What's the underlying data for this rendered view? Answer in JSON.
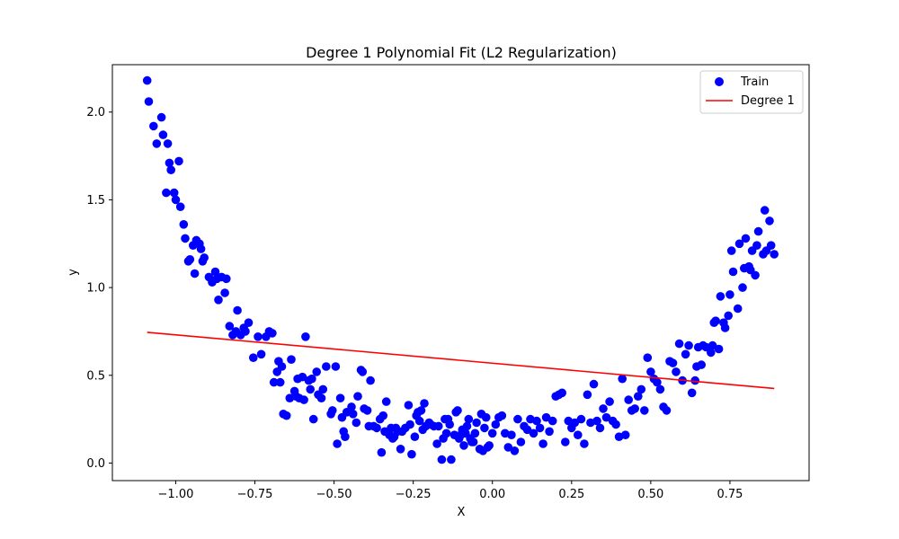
{
  "chart_data": {
    "type": "scatter",
    "title": "Degree 1 Polynomial Fit (L2 Regularization)",
    "xlabel": "X",
    "ylabel": "y",
    "xlim": [
      -1.2,
      1.0
    ],
    "ylim": [
      -0.1,
      2.27
    ],
    "x_ticks": [
      -1.0,
      -0.75,
      -0.5,
      -0.25,
      0.0,
      0.25,
      0.5,
      0.75
    ],
    "x_tick_labels": [
      "−1.00",
      "−0.75",
      "−0.50",
      "−0.25",
      "0.00",
      "0.25",
      "0.50",
      "0.75"
    ],
    "y_ticks": [
      0.0,
      0.5,
      1.0,
      1.5,
      2.0
    ],
    "y_tick_labels": [
      "0.0",
      "0.5",
      "1.0",
      "1.5",
      "2.0"
    ],
    "grid": false,
    "legend_position": "top-right",
    "series": [
      {
        "name": "Train",
        "kind": "scatter",
        "color": "#0000ff",
        "points": [
          [
            -1.09,
            2.18
          ],
          [
            -1.085,
            2.06
          ],
          [
            -1.07,
            1.92
          ],
          [
            -1.06,
            1.82
          ],
          [
            -1.045,
            1.97
          ],
          [
            -1.04,
            1.87
          ],
          [
            -1.025,
            1.82
          ],
          [
            -1.03,
            1.54
          ],
          [
            -1.02,
            1.71
          ],
          [
            -1.015,
            1.67
          ],
          [
            -1.005,
            1.54
          ],
          [
            -1.0,
            1.5
          ],
          [
            -0.99,
            1.72
          ],
          [
            -0.985,
            1.46
          ],
          [
            -0.975,
            1.36
          ],
          [
            -0.97,
            1.28
          ],
          [
            -0.96,
            1.15
          ],
          [
            -0.955,
            1.16
          ],
          [
            -0.945,
            1.24
          ],
          [
            -0.94,
            1.08
          ],
          [
            -0.935,
            1.27
          ],
          [
            -0.925,
            1.25
          ],
          [
            -0.92,
            1.22
          ],
          [
            -0.915,
            1.15
          ],
          [
            -0.91,
            1.17
          ],
          [
            -0.895,
            1.06
          ],
          [
            -0.885,
            1.03
          ],
          [
            -0.875,
            1.09
          ],
          [
            -0.87,
            1.05
          ],
          [
            -0.865,
            0.93
          ],
          [
            -0.855,
            1.06
          ],
          [
            -0.84,
            1.05
          ],
          [
            -0.845,
            0.97
          ],
          [
            -0.83,
            0.78
          ],
          [
            -0.82,
            0.73
          ],
          [
            -0.81,
            0.75
          ],
          [
            -0.805,
            0.87
          ],
          [
            -0.795,
            0.73
          ],
          [
            -0.785,
            0.77
          ],
          [
            -0.78,
            0.75
          ],
          [
            -0.77,
            0.8
          ],
          [
            -0.755,
            0.6
          ],
          [
            -0.74,
            0.72
          ],
          [
            -0.73,
            0.62
          ],
          [
            -0.715,
            0.72
          ],
          [
            -0.705,
            0.75
          ],
          [
            -0.695,
            0.74
          ],
          [
            -0.69,
            0.46
          ],
          [
            -0.68,
            0.52
          ],
          [
            -0.675,
            0.58
          ],
          [
            -0.665,
            0.55
          ],
          [
            -0.67,
            0.46
          ],
          [
            -0.66,
            0.28
          ],
          [
            -0.65,
            0.27
          ],
          [
            -0.64,
            0.37
          ],
          [
            -0.635,
            0.59
          ],
          [
            -0.625,
            0.41
          ],
          [
            -0.62,
            0.38
          ],
          [
            -0.615,
            0.48
          ],
          [
            -0.61,
            0.37
          ],
          [
            -0.6,
            0.49
          ],
          [
            -0.595,
            0.36
          ],
          [
            -0.59,
            0.72
          ],
          [
            -0.58,
            0.47
          ],
          [
            -0.575,
            0.42
          ],
          [
            -0.57,
            0.48
          ],
          [
            -0.565,
            0.25
          ],
          [
            -0.555,
            0.52
          ],
          [
            -0.55,
            0.39
          ],
          [
            -0.54,
            0.37
          ],
          [
            -0.535,
            0.42
          ],
          [
            -0.525,
            0.55
          ],
          [
            -0.51,
            0.28
          ],
          [
            -0.505,
            0.3
          ],
          [
            -0.495,
            0.55
          ],
          [
            -0.49,
            0.11
          ],
          [
            -0.48,
            0.37
          ],
          [
            -0.475,
            0.26
          ],
          [
            -0.47,
            0.18
          ],
          [
            -0.465,
            0.15
          ],
          [
            -0.46,
            0.29
          ],
          [
            -0.445,
            0.32
          ],
          [
            -0.44,
            0.28
          ],
          [
            -0.43,
            0.23
          ],
          [
            -0.425,
            0.38
          ],
          [
            -0.415,
            0.53
          ],
          [
            -0.41,
            0.52
          ],
          [
            -0.405,
            0.31
          ],
          [
            -0.395,
            0.3
          ],
          [
            -0.39,
            0.21
          ],
          [
            -0.385,
            0.47
          ],
          [
            -0.375,
            0.21
          ],
          [
            -0.365,
            0.2
          ],
          [
            -0.355,
            0.25
          ],
          [
            -0.35,
            0.06
          ],
          [
            -0.345,
            0.27
          ],
          [
            -0.34,
            0.18
          ],
          [
            -0.335,
            0.35
          ],
          [
            -0.325,
            0.16
          ],
          [
            -0.32,
            0.2
          ],
          [
            -0.315,
            0.14
          ],
          [
            -0.31,
            0.15
          ],
          [
            -0.305,
            0.2
          ],
          [
            -0.3,
            0.18
          ],
          [
            -0.29,
            0.08
          ],
          [
            -0.285,
            0.18
          ],
          [
            -0.275,
            0.2
          ],
          [
            -0.265,
            0.33
          ],
          [
            -0.26,
            0.22
          ],
          [
            -0.255,
            0.05
          ],
          [
            -0.245,
            0.15
          ],
          [
            -0.24,
            0.27
          ],
          [
            -0.235,
            0.29
          ],
          [
            -0.23,
            0.24
          ],
          [
            -0.225,
            0.3
          ],
          [
            -0.22,
            0.19
          ],
          [
            -0.215,
            0.34
          ],
          [
            -0.21,
            0.21
          ],
          [
            -0.2,
            0.23
          ],
          [
            -0.195,
            0.22
          ],
          [
            -0.185,
            0.21
          ],
          [
            -0.175,
            0.11
          ],
          [
            -0.17,
            0.21
          ],
          [
            -0.16,
            0.02
          ],
          [
            -0.155,
            0.14
          ],
          [
            -0.15,
            0.25
          ],
          [
            -0.145,
            0.17
          ],
          [
            -0.14,
            0.25
          ],
          [
            -0.135,
            0.22
          ],
          [
            -0.13,
            0.02
          ],
          [
            -0.12,
            0.16
          ],
          [
            -0.115,
            0.29
          ],
          [
            -0.11,
            0.3
          ],
          [
            -0.105,
            0.14
          ],
          [
            -0.1,
            0.16
          ],
          [
            -0.095,
            0.19
          ],
          [
            -0.09,
            0.1
          ],
          [
            -0.085,
            0.17
          ],
          [
            -0.08,
            0.21
          ],
          [
            -0.075,
            0.25
          ],
          [
            -0.07,
            0.14
          ],
          [
            -0.065,
            0.12
          ],
          [
            -0.06,
            0.12
          ],
          [
            -0.055,
            0.17
          ],
          [
            -0.05,
            0.23
          ],
          [
            -0.04,
            0.08
          ],
          [
            -0.035,
            0.28
          ],
          [
            -0.03,
            0.07
          ],
          [
            -0.025,
            0.2
          ],
          [
            -0.02,
            0.26
          ],
          [
            -0.015,
            0.09
          ],
          [
            -0.01,
            0.1
          ],
          [
            0.0,
            0.17
          ],
          [
            0.01,
            0.22
          ],
          [
            0.02,
            0.26
          ],
          [
            0.03,
            0.27
          ],
          [
            0.04,
            0.17
          ],
          [
            0.05,
            0.09
          ],
          [
            0.06,
            0.16
          ],
          [
            0.07,
            0.07
          ],
          [
            0.08,
            0.25
          ],
          [
            0.09,
            0.12
          ],
          [
            0.1,
            0.21
          ],
          [
            0.11,
            0.19
          ],
          [
            0.12,
            0.25
          ],
          [
            0.13,
            0.17
          ],
          [
            0.14,
            0.24
          ],
          [
            0.15,
            0.2
          ],
          [
            0.16,
            0.11
          ],
          [
            0.17,
            0.26
          ],
          [
            0.18,
            0.18
          ],
          [
            0.19,
            0.24
          ],
          [
            0.2,
            0.38
          ],
          [
            0.21,
            0.39
          ],
          [
            0.22,
            0.4
          ],
          [
            0.23,
            0.12
          ],
          [
            0.24,
            0.24
          ],
          [
            0.25,
            0.2
          ],
          [
            0.26,
            0.23
          ],
          [
            0.27,
            0.16
          ],
          [
            0.28,
            0.25
          ],
          [
            0.29,
            0.11
          ],
          [
            0.3,
            0.39
          ],
          [
            0.31,
            0.23
          ],
          [
            0.32,
            0.45
          ],
          [
            0.33,
            0.24
          ],
          [
            0.34,
            0.2
          ],
          [
            0.35,
            0.31
          ],
          [
            0.36,
            0.26
          ],
          [
            0.37,
            0.35
          ],
          [
            0.38,
            0.24
          ],
          [
            0.39,
            0.22
          ],
          [
            0.4,
            0.15
          ],
          [
            0.41,
            0.48
          ],
          [
            0.42,
            0.16
          ],
          [
            0.43,
            0.36
          ],
          [
            0.44,
            0.3
          ],
          [
            0.45,
            0.31
          ],
          [
            0.46,
            0.38
          ],
          [
            0.47,
            0.42
          ],
          [
            0.48,
            0.3
          ],
          [
            0.49,
            0.6
          ],
          [
            0.5,
            0.52
          ],
          [
            0.51,
            0.48
          ],
          [
            0.52,
            0.46
          ],
          [
            0.53,
            0.42
          ],
          [
            0.54,
            0.32
          ],
          [
            0.55,
            0.3
          ],
          [
            0.56,
            0.58
          ],
          [
            0.57,
            0.57
          ],
          [
            0.58,
            0.52
          ],
          [
            0.59,
            0.68
          ],
          [
            0.6,
            0.47
          ],
          [
            0.61,
            0.62
          ],
          [
            0.62,
            0.67
          ],
          [
            0.63,
            0.4
          ],
          [
            0.64,
            0.47
          ],
          [
            0.645,
            0.55
          ],
          [
            0.65,
            0.66
          ],
          [
            0.66,
            0.56
          ],
          [
            0.665,
            0.67
          ],
          [
            0.675,
            0.66
          ],
          [
            0.69,
            0.63
          ],
          [
            0.695,
            0.67
          ],
          [
            0.7,
            0.8
          ],
          [
            0.705,
            0.81
          ],
          [
            0.715,
            0.65
          ],
          [
            0.72,
            0.95
          ],
          [
            0.73,
            0.8
          ],
          [
            0.735,
            0.77
          ],
          [
            0.745,
            0.84
          ],
          [
            0.75,
            0.96
          ],
          [
            0.755,
            1.21
          ],
          [
            0.76,
            1.09
          ],
          [
            0.775,
            0.88
          ],
          [
            0.78,
            1.25
          ],
          [
            0.79,
            1.0
          ],
          [
            0.795,
            1.11
          ],
          [
            0.8,
            1.28
          ],
          [
            0.81,
            1.12
          ],
          [
            0.815,
            1.1
          ],
          [
            0.82,
            1.21
          ],
          [
            0.83,
            1.07
          ],
          [
            0.835,
            1.24
          ],
          [
            0.84,
            1.32
          ],
          [
            0.855,
            1.19
          ],
          [
            0.86,
            1.44
          ],
          [
            0.865,
            1.21
          ],
          [
            0.875,
            1.38
          ],
          [
            0.88,
            1.24
          ],
          [
            0.89,
            1.19
          ]
        ]
      },
      {
        "name": "Degree 1",
        "kind": "line",
        "color": "#ff0000",
        "points": [
          [
            -1.09,
            0.745
          ],
          [
            0.89,
            0.425
          ]
        ]
      }
    ]
  }
}
